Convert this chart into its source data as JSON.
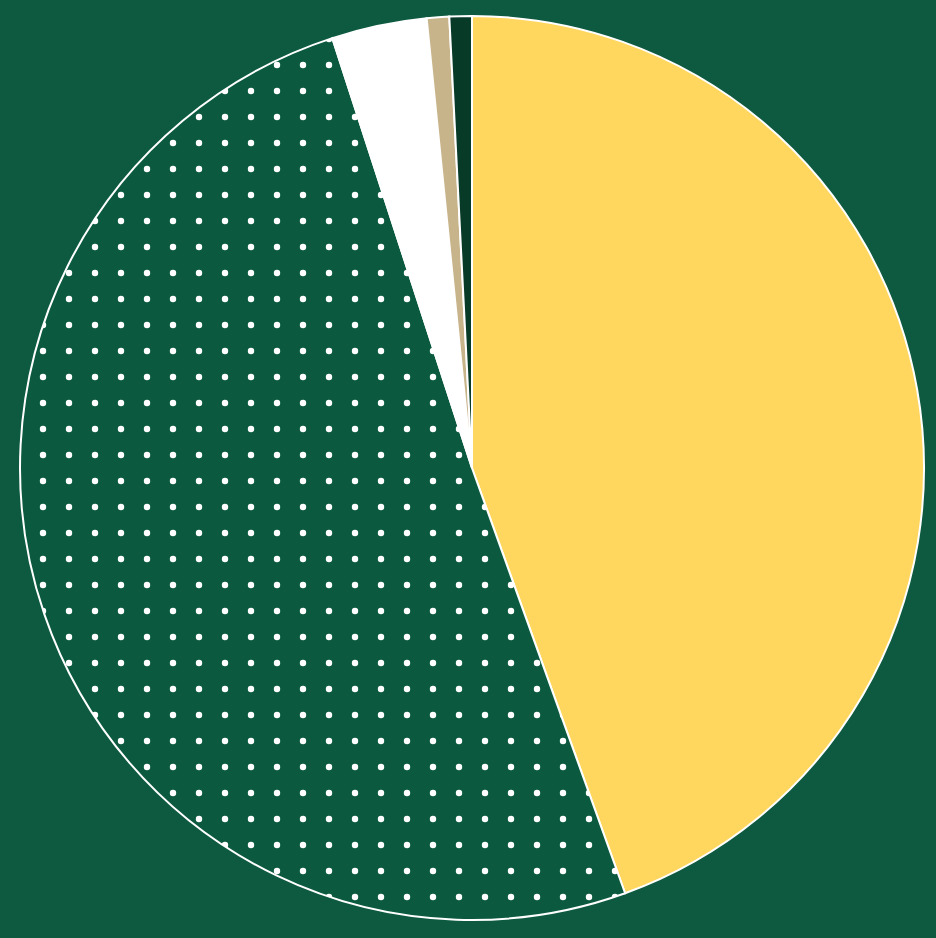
{
  "chart_data": {
    "type": "pie",
    "categories": [
      null,
      null,
      null,
      null,
      null
    ],
    "values": [
      44.5,
      50.5,
      3.4,
      0.8,
      0.8
    ],
    "colors": [
      "#ffd75e",
      "#0b5a3f",
      "#ffffff",
      "#c8b48a",
      "#083a28"
    ]
  }
}
